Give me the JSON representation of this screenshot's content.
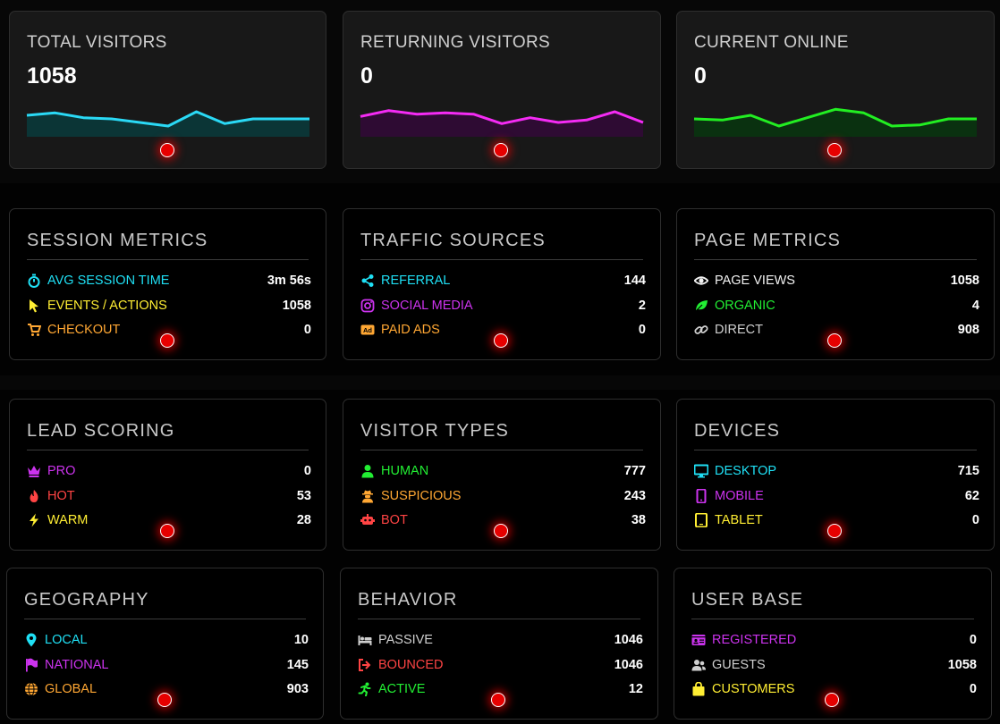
{
  "stats": [
    {
      "title": "TOTAL VISITORS",
      "value": "1058",
      "color": "#2ad9f5",
      "fill": "#0b3536",
      "trend": [
        18,
        20,
        16,
        15,
        12,
        9,
        21,
        11,
        15,
        15,
        15
      ]
    },
    {
      "title": "RETURNING VISITORS",
      "value": "0",
      "color": "#f42bf4",
      "fill": "#2e0b33",
      "trend": [
        17,
        22,
        19,
        20,
        19,
        11,
        16,
        12,
        14,
        21,
        12
      ]
    },
    {
      "title": "CURRENT ONLINE",
      "value": "0",
      "color": "#22ee22",
      "fill": "#0a3110",
      "trend": [
        15,
        14,
        18,
        9,
        16,
        23,
        20,
        9,
        10,
        15,
        15
      ]
    }
  ],
  "panels": [
    {
      "title": "SESSION METRICS",
      "rows": [
        {
          "icon": "stopwatch-icon",
          "label": "AVG SESSION TIME",
          "value": "3m 56s",
          "color": "#1fe0f5"
        },
        {
          "icon": "pointer-icon",
          "label": "EVENTS / ACTIONS",
          "value": "1058",
          "color": "#ffee33"
        },
        {
          "icon": "cart-icon",
          "label": "CHECKOUT",
          "value": "0",
          "color": "#ffa733"
        }
      ]
    },
    {
      "title": "TRAFFIC SOURCES",
      "rows": [
        {
          "icon": "share-icon",
          "label": "REFERRAL",
          "value": "144",
          "color": "#1fe0f5"
        },
        {
          "icon": "instagram-icon",
          "label": "SOCIAL MEDIA",
          "value": "2",
          "color": "#cc33ee"
        },
        {
          "icon": "ad-icon",
          "label": "PAID ADS",
          "value": "0",
          "color": "#ffa733"
        }
      ]
    },
    {
      "title": "PAGE METRICS",
      "rows": [
        {
          "icon": "eye-icon",
          "label": "PAGE VIEWS",
          "value": "1058",
          "color": "#f2f2f2"
        },
        {
          "icon": "leaf-icon",
          "label": "ORGANIC",
          "value": "4",
          "color": "#22ee33"
        },
        {
          "icon": "link-icon",
          "label": "DIRECT",
          "value": "908",
          "color": "#cfcfcf"
        }
      ]
    },
    {
      "title": "LEAD SCORING",
      "rows": [
        {
          "icon": "crown-icon",
          "label": "PRO",
          "value": "0",
          "color": "#cc33ee"
        },
        {
          "icon": "fire-icon",
          "label": "HOT",
          "value": "53",
          "color": "#ff4444"
        },
        {
          "icon": "bolt-icon",
          "label": "WARM",
          "value": "28",
          "color": "#ffee33"
        }
      ]
    },
    {
      "title": "VISITOR TYPES",
      "rows": [
        {
          "icon": "user-icon",
          "label": "HUMAN",
          "value": "777",
          "color": "#22ee33"
        },
        {
          "icon": "spy-icon",
          "label": "SUSPICIOUS",
          "value": "243",
          "color": "#ffa733"
        },
        {
          "icon": "robot-icon",
          "label": "BOT",
          "value": "38",
          "color": "#ff4444"
        }
      ]
    },
    {
      "title": "DEVICES",
      "rows": [
        {
          "icon": "desktop-icon",
          "label": "DESKTOP",
          "value": "715",
          "color": "#1fe0f5"
        },
        {
          "icon": "mobile-icon",
          "label": "MOBILE",
          "value": "62",
          "color": "#cc33ee"
        },
        {
          "icon": "tablet-icon",
          "label": "TABLET",
          "value": "0",
          "color": "#ffee33"
        }
      ]
    },
    {
      "title": "GEOGRAPHY",
      "rows": [
        {
          "icon": "map-pin-icon",
          "label": "LOCAL",
          "value": "10",
          "color": "#1fe0f5"
        },
        {
          "icon": "flag-icon",
          "label": "NATIONAL",
          "value": "145",
          "color": "#cc33ee"
        },
        {
          "icon": "globe-icon",
          "label": "GLOBAL",
          "value": "903",
          "color": "#ffa733"
        }
      ]
    },
    {
      "title": "BEHAVIOR",
      "rows": [
        {
          "icon": "bed-icon",
          "label": "PASSIVE",
          "value": "1046",
          "color": "#cfcfcf"
        },
        {
          "icon": "sign-out-icon",
          "label": "BOUNCED",
          "value": "1046",
          "color": "#ff4444"
        },
        {
          "icon": "running-icon",
          "label": "ACTIVE",
          "value": "12",
          "color": "#22ee33"
        }
      ]
    },
    {
      "title": "USER BASE",
      "rows": [
        {
          "icon": "id-card-icon",
          "label": "REGISTERED",
          "value": "0",
          "color": "#cc33ee"
        },
        {
          "icon": "users-icon",
          "label": "GUESTS",
          "value": "1058",
          "color": "#cfcfcf"
        },
        {
          "icon": "shopping-bag-icon",
          "label": "CUSTOMERS",
          "value": "0",
          "color": "#ffee33"
        }
      ]
    }
  ]
}
